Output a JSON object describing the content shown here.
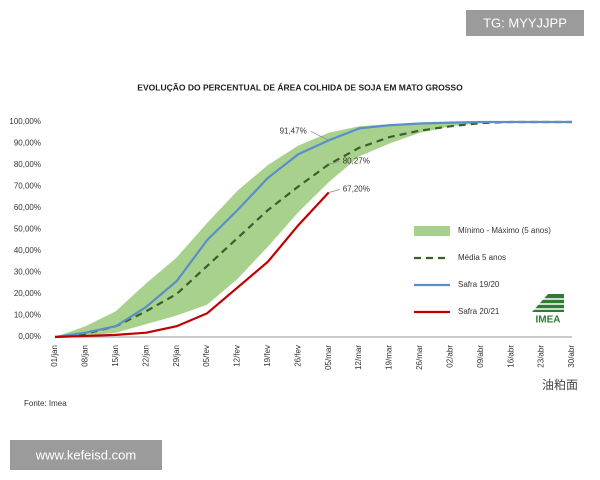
{
  "chart_data": {
    "type": "line",
    "title": "EVOLUÇÃO DO PERCENTUAL DE ÁREA COLHIDA DE SOJA EM MATO GROSSO",
    "categories": [
      "01/jan",
      "08/jan",
      "15/jan",
      "22/jan",
      "29/jan",
      "05/fev",
      "12/fev",
      "19/fev",
      "26/fev",
      "05/mar",
      "12/mar",
      "19/mar",
      "26/mar",
      "02/abr",
      "09/abr",
      "16/abr",
      "23/abr",
      "30/abr"
    ],
    "ylim": [
      0,
      100
    ],
    "yticks": [
      {
        "value": 0,
        "label": "0,00%"
      },
      {
        "value": 10,
        "label": "10,00%"
      },
      {
        "value": 20,
        "label": "20,00%"
      },
      {
        "value": 30,
        "label": "30,00%"
      },
      {
        "value": 40,
        "label": "40,00%"
      },
      {
        "value": 50,
        "label": "50,00%"
      },
      {
        "value": 60,
        "label": "60,00%"
      },
      {
        "value": 70,
        "label": "70,00%"
      },
      {
        "value": 80,
        "label": "80,00%"
      },
      {
        "value": 90,
        "label": "90,00%"
      },
      {
        "value": 100,
        "label": "100,00%"
      }
    ],
    "grid": false,
    "legend": "right",
    "band": {
      "name": "Mínimo - Máximo (5 anos)",
      "color": "#a9d18e",
      "low": [
        0,
        0.5,
        2,
        6,
        10,
        15,
        27,
        42,
        58,
        72,
        84,
        90,
        95,
        98,
        99.5,
        100,
        100,
        100
      ],
      "high": [
        0,
        5,
        12,
        25,
        37,
        53,
        68,
        80,
        89,
        95,
        98,
        99,
        99.7,
        100,
        100,
        100,
        100,
        100
      ]
    },
    "series": [
      {
        "name": "Média 5 anos",
        "color": "#3b5e2b",
        "dashed": true,
        "values": [
          0,
          1.5,
          5,
          12,
          20,
          33,
          46,
          59,
          70,
          80.27,
          88,
          93,
          96,
          98,
          99.5,
          100,
          100,
          100
        ],
        "value_labels": [
          null,
          null,
          null,
          null,
          null,
          null,
          null,
          null,
          null,
          "80,27%",
          null,
          null,
          null,
          null,
          null,
          null,
          null,
          null
        ]
      },
      {
        "name": "Safra 19/20",
        "color": "#5b8ec9",
        "dashed": false,
        "values": [
          0,
          2,
          5,
          14,
          26,
          45,
          59,
          74,
          85,
          91.47,
          97,
          98.5,
          99.3,
          99.7,
          100,
          100,
          100,
          100
        ],
        "value_labels": [
          null,
          null,
          null,
          null,
          null,
          null,
          null,
          null,
          null,
          "91,47%",
          null,
          null,
          null,
          null,
          null,
          null,
          null,
          null
        ]
      },
      {
        "name": "Safra 20/21",
        "color": "#c00000",
        "dashed": false,
        "values": [
          0,
          0.5,
          1,
          2,
          5,
          11,
          23,
          35,
          52,
          67.2,
          null,
          null,
          null,
          null,
          null,
          null,
          null,
          null
        ],
        "value_labels": [
          null,
          null,
          null,
          null,
          null,
          null,
          null,
          null,
          null,
          "67,20%",
          null,
          null,
          null,
          null,
          null,
          null,
          null,
          null
        ]
      }
    ],
    "source": "Fonte: Imea",
    "logo": "IMEA"
  },
  "watermarks": [
    "TG: MYYJJPP",
    "www.kefeisd.com",
    "油粕面"
  ]
}
